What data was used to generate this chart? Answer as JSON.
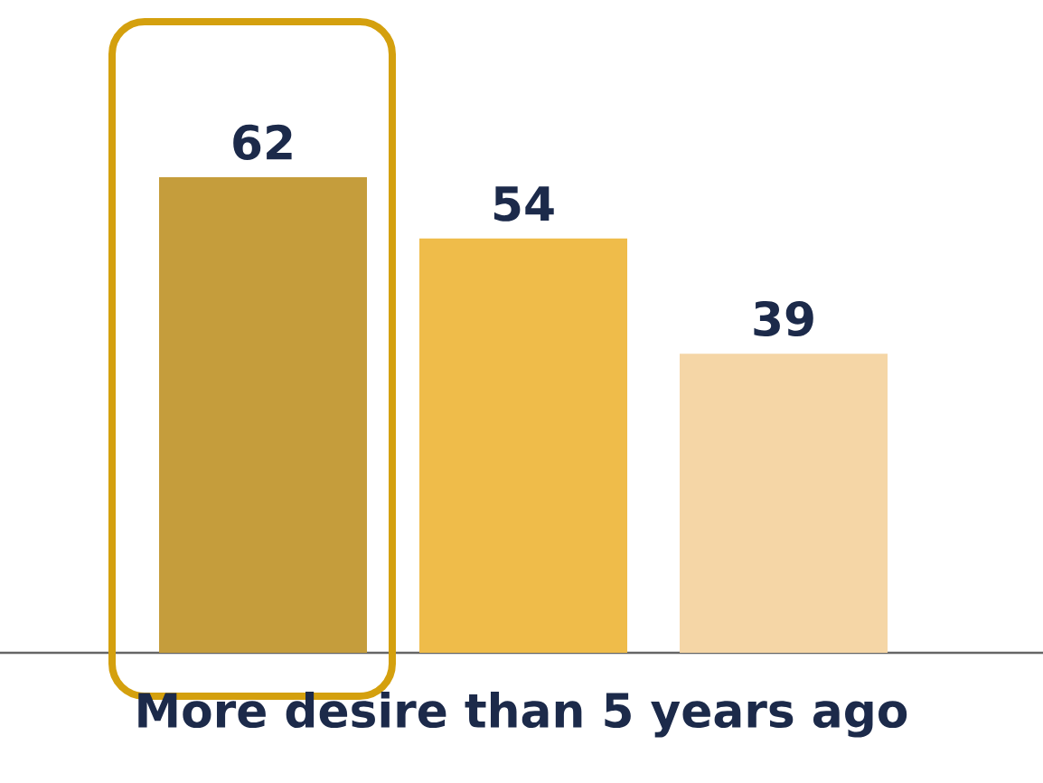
{
  "chart_data": {
    "type": "bar",
    "xlabel": "More desire than 5 years ago",
    "categories": [
      null,
      null,
      null
    ],
    "values": [
      62,
      54,
      39
    ],
    "colors": [
      "#c59d3c",
      "#efbc4a",
      "#f5d6a6"
    ],
    "data_labels": true
  }
}
